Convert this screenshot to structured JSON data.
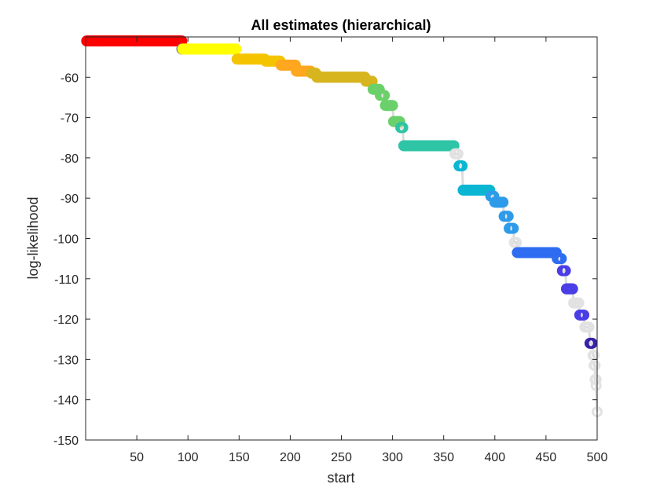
{
  "chart_data": {
    "type": "scatter",
    "title": "All estimates (hierarchical)",
    "xlabel": "start",
    "ylabel": "log-likelihood",
    "xlim": [
      0,
      500
    ],
    "ylim": [
      -150,
      -50
    ],
    "xticks": [
      50,
      100,
      150,
      200,
      250,
      300,
      350,
      400,
      450,
      500
    ],
    "yticks": [
      -60,
      -70,
      -80,
      -90,
      -100,
      -110,
      -120,
      -130,
      -140,
      -150
    ],
    "box": true,
    "grid": false,
    "marker": "open-circle",
    "line_color": "#dcdcdc",
    "colors": {
      "red": "#ff0000",
      "yellow": "#ffff00",
      "gold": "#f5c400",
      "orange": "#ffa71f",
      "olive": "#d7b51f",
      "green": "#6bd06a",
      "teal": "#2ec4a6",
      "cyan": "#0bb6d2",
      "sky": "#2e9bea",
      "blue": "#2e6cf2",
      "indigo": "#4a3ee6",
      "navy": "#3622a8",
      "gray": "#e2e2e2",
      "darkgray": "#808080"
    },
    "segments": [
      {
        "x": [
          1,
          94
        ],
        "y": -51,
        "color": "red"
      },
      {
        "x": [
          94,
          94
        ],
        "y": -53,
        "color": "darkgray"
      },
      {
        "x": [
          95,
          147
        ],
        "y": -53,
        "color": "yellow"
      },
      {
        "x": [
          148,
          175
        ],
        "y": -55.5,
        "color": "gold"
      },
      {
        "x": [
          176,
          190
        ],
        "y": -56,
        "color": "gold"
      },
      {
        "x": [
          191,
          205
        ],
        "y": -57,
        "color": "orange"
      },
      {
        "x": [
          206,
          220
        ],
        "y": -58.5,
        "color": "orange"
      },
      {
        "x": [
          221,
          225
        ],
        "y": -59,
        "color": "olive"
      },
      {
        "x": [
          226,
          273
        ],
        "y": -60,
        "color": "olive"
      },
      {
        "x": [
          274,
          280
        ],
        "y": -61,
        "color": "olive"
      },
      {
        "x": [
          281,
          287
        ],
        "y": -63,
        "color": "green"
      },
      {
        "x": [
          288,
          292
        ],
        "y": -64.5,
        "color": "green"
      },
      {
        "x": [
          293,
          300
        ],
        "y": -67,
        "color": "green"
      },
      {
        "x": [
          301,
          307
        ],
        "y": -71,
        "color": "green"
      },
      {
        "x": [
          308,
          310
        ],
        "y": -72.5,
        "color": "teal"
      },
      {
        "x": [
          311,
          360
        ],
        "y": -77,
        "color": "teal"
      },
      {
        "x": [
          361,
          364
        ],
        "y": -79,
        "color": "gray"
      },
      {
        "x": [
          365,
          368
        ],
        "y": -82,
        "color": "cyan"
      },
      {
        "x": [
          369,
          395
        ],
        "y": -88,
        "color": "cyan"
      },
      {
        "x": [
          396,
          399
        ],
        "y": -89.5,
        "color": "sky"
      },
      {
        "x": [
          400,
          408
        ],
        "y": -91,
        "color": "sky"
      },
      {
        "x": [
          409,
          413
        ],
        "y": -94.5,
        "color": "sky"
      },
      {
        "x": [
          414,
          418
        ],
        "y": -97.5,
        "color": "sky"
      },
      {
        "x": [
          419,
          421
        ],
        "y": -101,
        "color": "gray"
      },
      {
        "x": [
          422,
          460
        ],
        "y": -103.5,
        "color": "blue"
      },
      {
        "x": [
          461,
          465
        ],
        "y": -105,
        "color": "blue"
      },
      {
        "x": [
          466,
          469
        ],
        "y": -108,
        "color": "indigo"
      },
      {
        "x": [
          470,
          476
        ],
        "y": -112.5,
        "color": "indigo"
      },
      {
        "x": [
          477,
          482
        ],
        "y": -116,
        "color": "gray"
      },
      {
        "x": [
          483,
          487
        ],
        "y": -119,
        "color": "indigo"
      },
      {
        "x": [
          488,
          492
        ],
        "y": -122,
        "color": "gray"
      },
      {
        "x": [
          493,
          495
        ],
        "y": -126,
        "color": "navy"
      },
      {
        "x": [
          496,
          497
        ],
        "y": -129,
        "color": "gray"
      },
      {
        "x": [
          497,
          498
        ],
        "y": -131.5,
        "color": "gray"
      },
      {
        "x": [
          498,
          499
        ],
        "y": -135,
        "color": "gray"
      },
      {
        "x": [
          499,
          499
        ],
        "y": -136.5,
        "color": "gray"
      },
      {
        "x": [
          500,
          500
        ],
        "y": -143,
        "color": "gray"
      }
    ]
  }
}
